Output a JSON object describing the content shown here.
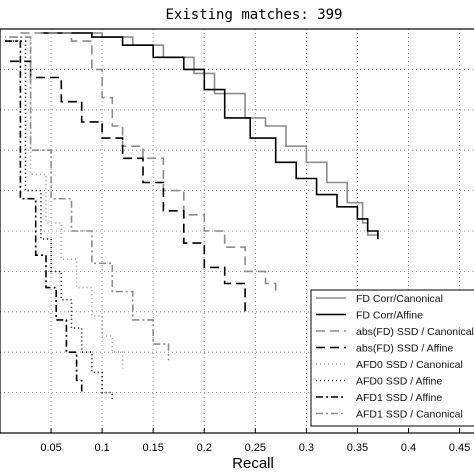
{
  "chart_data": {
    "type": "line",
    "title": "Existing matches: 399",
    "xlabel": "Recall",
    "ylabel": "",
    "xlim": [
      0,
      0.47
    ],
    "ylim": [
      0,
      1
    ],
    "grid": true,
    "legend_position": "bottom-right",
    "x_ticks": [
      {
        "value": 0.05,
        "label": "0.05"
      },
      {
        "value": 0.1,
        "label": "0.1"
      },
      {
        "value": 0.15,
        "label": "0.15"
      },
      {
        "value": 0.2,
        "label": "0.2"
      },
      {
        "value": 0.25,
        "label": "0.25"
      },
      {
        "value": 0.3,
        "label": "0.3"
      },
      {
        "value": 0.35,
        "label": "0.35"
      },
      {
        "value": 0.4,
        "label": "0.4"
      },
      {
        "value": 0.45,
        "label": "0.45"
      }
    ],
    "y_gridlines": [
      0.1,
      0.2,
      0.3,
      0.4,
      0.5,
      0.6,
      0.7,
      0.8,
      0.9
    ],
    "series": [
      {
        "name": "FD    Corr/Canonical",
        "color": "#8c8c8c",
        "dash": "solid",
        "x": [
          0.04,
          0.1,
          0.13,
          0.16,
          0.19,
          0.21,
          0.24,
          0.26,
          0.28,
          0.3,
          0.32,
          0.34,
          0.355,
          0.36,
          0.37
        ],
        "y": [
          0.99,
          0.98,
          0.96,
          0.93,
          0.89,
          0.84,
          0.78,
          0.76,
          0.71,
          0.67,
          0.62,
          0.57,
          0.52,
          0.49,
          0.48
        ]
      },
      {
        "name": "FD    Corr/Affine",
        "color": "#000000",
        "dash": "solid",
        "x": [
          0.04,
          0.09,
          0.12,
          0.15,
          0.18,
          0.2,
          0.22,
          0.245,
          0.27,
          0.29,
          0.31,
          0.33,
          0.35,
          0.36,
          0.37
        ],
        "y": [
          0.99,
          0.98,
          0.96,
          0.93,
          0.9,
          0.85,
          0.78,
          0.73,
          0.67,
          0.63,
          0.59,
          0.56,
          0.53,
          0.5,
          0.48
        ]
      },
      {
        "name": "abs(FD)    SSD / Canonical",
        "color": "#8c8c8c",
        "dash": "9,5",
        "x": [
          0.02,
          0.07,
          0.09,
          0.1,
          0.11,
          0.12,
          0.14,
          0.16,
          0.18,
          0.2,
          0.22,
          0.24,
          0.26,
          0.27
        ],
        "y": [
          0.99,
          0.97,
          0.9,
          0.83,
          0.76,
          0.71,
          0.68,
          0.6,
          0.54,
          0.5,
          0.46,
          0.4,
          0.37,
          0.34
        ]
      },
      {
        "name": "abs(FD)    SSD / Affine",
        "color": "#000000",
        "dash": "9,5",
        "x": [
          0.01,
          0.03,
          0.06,
          0.08,
          0.1,
          0.12,
          0.14,
          0.16,
          0.18,
          0.2,
          0.22,
          0.24
        ],
        "y": [
          0.92,
          0.88,
          0.82,
          0.77,
          0.73,
          0.68,
          0.62,
          0.55,
          0.47,
          0.41,
          0.37,
          0.3
        ]
      },
      {
        "name": "AFD0    SSD / Canonical",
        "color": "#9a9a9a",
        "dash": "1,3",
        "x": [
          0.005,
          0.03,
          0.045,
          0.06,
          0.075,
          0.09,
          0.1,
          0.11,
          0.12
        ],
        "y": [
          0.98,
          0.64,
          0.52,
          0.43,
          0.36,
          0.29,
          0.24,
          0.2,
          0.16
        ]
      },
      {
        "name": "AFD0    SSD / Affine",
        "color": "#000000",
        "dash": "1,3",
        "x": [
          0.005,
          0.025,
          0.04,
          0.05,
          0.06,
          0.07,
          0.08,
          0.09,
          0.1,
          0.11
        ],
        "y": [
          0.97,
          0.6,
          0.48,
          0.4,
          0.33,
          0.26,
          0.2,
          0.15,
          0.1,
          0.08
        ]
      },
      {
        "name": "AFD1    SSD / Affine",
        "color": "#000000",
        "dash": "7,3,2,3",
        "x": [
          0.005,
          0.02,
          0.035,
          0.045,
          0.055,
          0.065,
          0.075,
          0.08
        ],
        "y": [
          0.97,
          0.58,
          0.44,
          0.36,
          0.28,
          0.2,
          0.13,
          0.1
        ]
      },
      {
        "name": "AFD1    SSD / Canonical",
        "color": "#8c8c8c",
        "dash": "7,3,2,3",
        "x": [
          0.01,
          0.03,
          0.05,
          0.07,
          0.09,
          0.11,
          0.13,
          0.15,
          0.165
        ],
        "y": [
          0.98,
          0.7,
          0.58,
          0.5,
          0.42,
          0.35,
          0.28,
          0.22,
          0.18
        ]
      }
    ]
  }
}
